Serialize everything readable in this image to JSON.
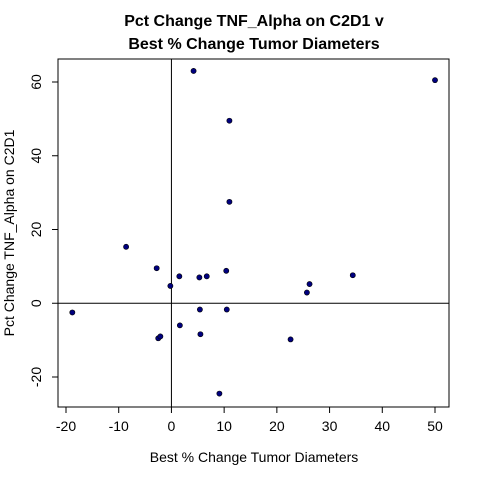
{
  "chart_data": {
    "type": "scatter",
    "title_lines": [
      "Pct Change TNF_Alpha on C2D1 v",
      "Best % Change Tumor Diameters"
    ],
    "xlabel": "Best % Change Tumor Diameters",
    "ylabel": "Pct Change TNF_Alpha on C2D1",
    "xlim": [
      -20,
      52
    ],
    "ylim": [
      -28,
      66
    ],
    "xticks": [
      -20,
      -10,
      0,
      10,
      20,
      30,
      40,
      50
    ],
    "yticks": [
      -20,
      0,
      20,
      40,
      60
    ],
    "xtick_labels": [
      "-20",
      "-10",
      "0",
      "10",
      "20",
      "30",
      "40",
      "50"
    ],
    "ytick_labels": [
      "-20",
      "0",
      "20",
      "40",
      "60"
    ],
    "reference_lines": {
      "x": 0,
      "y": 0
    },
    "grid": false,
    "point_color": "#00007f",
    "points": [
      {
        "x": -18.8,
        "y": -2.5
      },
      {
        "x": -8.6,
        "y": 15.3
      },
      {
        "x": -2.8,
        "y": 9.5
      },
      {
        "x": -2.5,
        "y": -9.5
      },
      {
        "x": -2.1,
        "y": -9.0
      },
      {
        "x": -0.2,
        "y": 4.7
      },
      {
        "x": 1.5,
        "y": 7.3
      },
      {
        "x": 1.6,
        "y": -6.0
      },
      {
        "x": 4.2,
        "y": 63.0
      },
      {
        "x": 5.3,
        "y": 7.0
      },
      {
        "x": 5.4,
        "y": -1.7
      },
      {
        "x": 5.5,
        "y": -8.4
      },
      {
        "x": 6.7,
        "y": 7.3
      },
      {
        "x": 9.1,
        "y": -24.5
      },
      {
        "x": 10.4,
        "y": 8.8
      },
      {
        "x": 10.5,
        "y": -1.7
      },
      {
        "x": 11.0,
        "y": 49.5
      },
      {
        "x": 11.0,
        "y": 27.5
      },
      {
        "x": 22.6,
        "y": -9.8
      },
      {
        "x": 25.7,
        "y": 2.9
      },
      {
        "x": 26.2,
        "y": 5.2
      },
      {
        "x": 34.4,
        "y": 7.6
      },
      {
        "x": 50.0,
        "y": 60.5
      }
    ]
  }
}
